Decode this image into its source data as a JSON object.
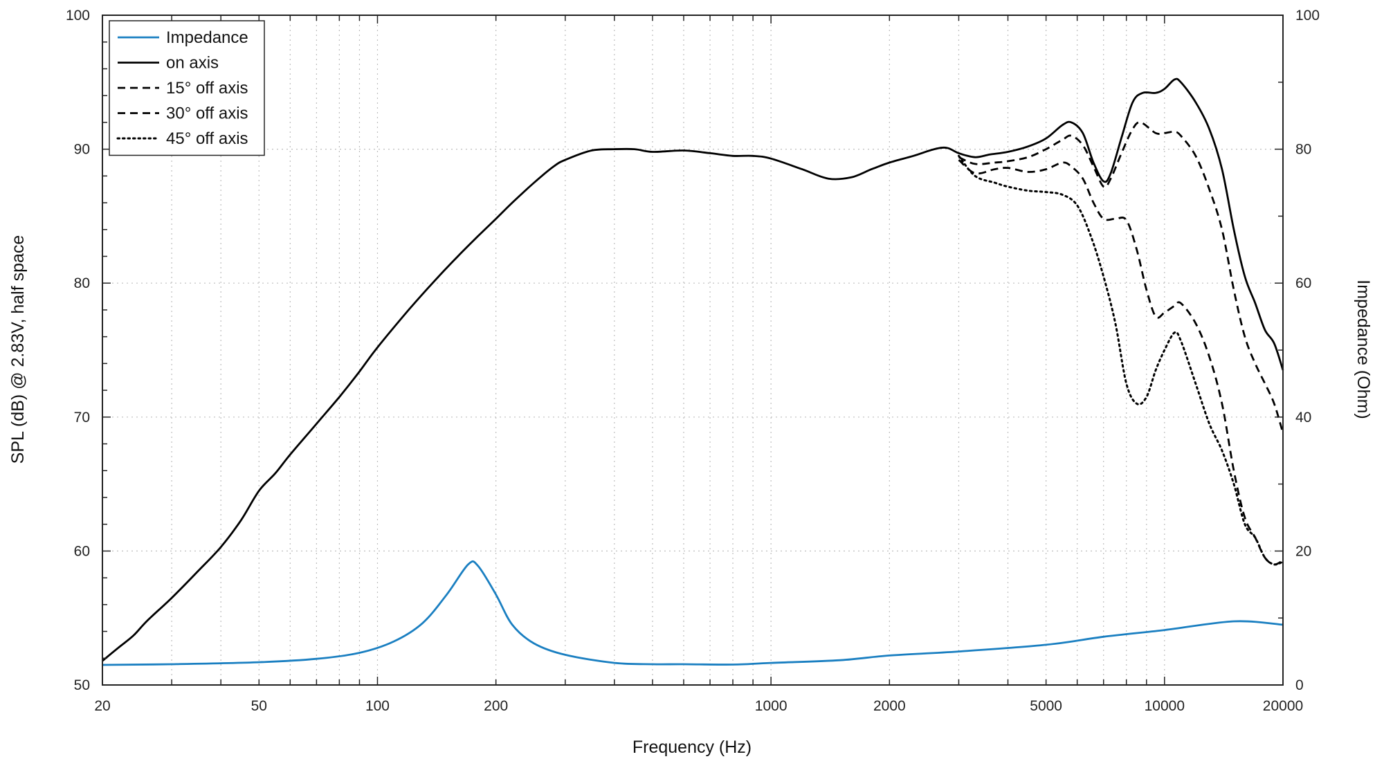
{
  "chart_data": {
    "type": "line",
    "xlabel": "Frequency (Hz)",
    "ylabel": "SPL (dB) @ 2.83V, half space",
    "y2label": "Impedance (Ohm)",
    "x_scale": "log",
    "xlim": [
      20,
      20000
    ],
    "ylim": [
      50,
      100
    ],
    "y2lim": [
      0,
      100
    ],
    "grid": true,
    "legend_position": "top-left",
    "x_tick_labels": [
      "20",
      "50",
      "100",
      "200",
      "1000",
      "2000",
      "5000",
      "10000",
      "20000"
    ],
    "y_tick_labels": [
      "50",
      "60",
      "70",
      "80",
      "90",
      "100"
    ],
    "y2_tick_labels": [
      "0",
      "20",
      "40",
      "60",
      "80",
      "100"
    ],
    "series": [
      {
        "name": "Impedance",
        "axis": "right",
        "color": "#1a7fc1",
        "style": "solid",
        "points": [
          [
            20,
            3
          ],
          [
            30,
            3.1
          ],
          [
            50,
            3.4
          ],
          [
            70,
            3.9
          ],
          [
            90,
            4.8
          ],
          [
            110,
            6.5
          ],
          [
            130,
            9.2
          ],
          [
            150,
            13.5
          ],
          [
            170,
            18
          ],
          [
            180,
            17.8
          ],
          [
            200,
            13.5
          ],
          [
            220,
            9
          ],
          [
            250,
            6.2
          ],
          [
            300,
            4.5
          ],
          [
            400,
            3.3
          ],
          [
            500,
            3.1
          ],
          [
            600,
            3.1
          ],
          [
            800,
            3.05
          ],
          [
            1000,
            3.3
          ],
          [
            1500,
            3.7
          ],
          [
            2000,
            4.4
          ],
          [
            3000,
            5
          ],
          [
            5000,
            6
          ],
          [
            7000,
            7.2
          ],
          [
            10000,
            8.2
          ],
          [
            15000,
            9.5
          ],
          [
            20000,
            9
          ]
        ]
      },
      {
        "name": "on axis",
        "axis": "left",
        "color": "#000000",
        "style": "solid",
        "points": [
          [
            20,
            51.8
          ],
          [
            22,
            52.8
          ],
          [
            24,
            53.7
          ],
          [
            26,
            54.8
          ],
          [
            30,
            56.5
          ],
          [
            35,
            58.5
          ],
          [
            40,
            60.3
          ],
          [
            45,
            62.3
          ],
          [
            50,
            64.5
          ],
          [
            55,
            65.8
          ],
          [
            60,
            67.2
          ],
          [
            70,
            69.5
          ],
          [
            80,
            71.5
          ],
          [
            90,
            73.4
          ],
          [
            100,
            75.2
          ],
          [
            120,
            78
          ],
          [
            140,
            80.2
          ],
          [
            160,
            82
          ],
          [
            180,
            83.5
          ],
          [
            200,
            84.8
          ],
          [
            220,
            86
          ],
          [
            250,
            87.5
          ],
          [
            280,
            88.7
          ],
          [
            300,
            89.2
          ],
          [
            350,
            89.9
          ],
          [
            400,
            90
          ],
          [
            450,
            90
          ],
          [
            500,
            89.8
          ],
          [
            600,
            89.9
          ],
          [
            700,
            89.7
          ],
          [
            800,
            89.5
          ],
          [
            900,
            89.5
          ],
          [
            1000,
            89.3
          ],
          [
            1200,
            88.5
          ],
          [
            1400,
            87.8
          ],
          [
            1600,
            87.9
          ],
          [
            1800,
            88.5
          ],
          [
            2000,
            89
          ],
          [
            2300,
            89.5
          ],
          [
            2600,
            90
          ],
          [
            2800,
            90.1
          ],
          [
            3000,
            89.7
          ],
          [
            3300,
            89.4
          ],
          [
            3600,
            89.6
          ],
          [
            4000,
            89.8
          ],
          [
            4500,
            90.2
          ],
          [
            5000,
            90.8
          ],
          [
            5500,
            91.8
          ],
          [
            5800,
            92
          ],
          [
            6200,
            91.2
          ],
          [
            6600,
            89
          ],
          [
            7000,
            87.6
          ],
          [
            7300,
            88.2
          ],
          [
            7800,
            91
          ],
          [
            8300,
            93.5
          ],
          [
            8800,
            94.2
          ],
          [
            9500,
            94.2
          ],
          [
            10000,
            94.5
          ],
          [
            10600,
            95.2
          ],
          [
            11000,
            95
          ],
          [
            12000,
            93.5
          ],
          [
            13000,
            91.5
          ],
          [
            14000,
            88.5
          ],
          [
            15000,
            84
          ],
          [
            16000,
            80.5
          ],
          [
            17000,
            78.5
          ],
          [
            18000,
            76.5
          ],
          [
            19000,
            75.5
          ],
          [
            20000,
            73.5
          ]
        ]
      },
      {
        "name": "15° off axis",
        "axis": "left",
        "color": "#000000",
        "style": "dashed",
        "points": [
          [
            3000,
            89.4
          ],
          [
            3300,
            88.9
          ],
          [
            3700,
            89
          ],
          [
            4000,
            89.1
          ],
          [
            4500,
            89.4
          ],
          [
            5000,
            90
          ],
          [
            5500,
            90.7
          ],
          [
            5800,
            91
          ],
          [
            6200,
            90.3
          ],
          [
            6600,
            88.7
          ],
          [
            7000,
            87.2
          ],
          [
            7300,
            87.8
          ],
          [
            7800,
            89.8
          ],
          [
            8300,
            91.5
          ],
          [
            8700,
            92
          ],
          [
            9500,
            91.2
          ],
          [
            10000,
            91.2
          ],
          [
            10600,
            91.3
          ],
          [
            11000,
            91
          ],
          [
            12000,
            89.5
          ],
          [
            13000,
            87
          ],
          [
            14000,
            84
          ],
          [
            15000,
            79.5
          ],
          [
            16000,
            76
          ],
          [
            17000,
            74
          ],
          [
            18000,
            72.5
          ],
          [
            19000,
            71
          ],
          [
            20000,
            68.8
          ]
        ]
      },
      {
        "name": "30° off axis",
        "axis": "left",
        "color": "#000000",
        "style": "dashed",
        "points": [
          [
            3000,
            89.2
          ],
          [
            3300,
            88.2
          ],
          [
            3700,
            88.5
          ],
          [
            4000,
            88.6
          ],
          [
            4500,
            88.3
          ],
          [
            5000,
            88.5
          ],
          [
            5500,
            89
          ],
          [
            5800,
            88.7
          ],
          [
            6200,
            87.8
          ],
          [
            6600,
            86
          ],
          [
            7000,
            84.8
          ],
          [
            7500,
            84.8
          ],
          [
            8000,
            84.7
          ],
          [
            8500,
            82.5
          ],
          [
            9000,
            79.5
          ],
          [
            9500,
            77.5
          ],
          [
            10000,
            77.8
          ],
          [
            10600,
            78.3
          ],
          [
            11000,
            78.5
          ],
          [
            12000,
            77
          ],
          [
            13000,
            74.5
          ],
          [
            14000,
            71
          ],
          [
            15000,
            66
          ],
          [
            16000,
            62.5
          ],
          [
            17000,
            61
          ],
          [
            18000,
            59.5
          ],
          [
            19000,
            59
          ],
          [
            20000,
            59.3
          ]
        ]
      },
      {
        "name": "45° off axis",
        "axis": "left",
        "color": "#000000",
        "style": "dotted",
        "points": [
          [
            3000,
            89.5
          ],
          [
            3300,
            88
          ],
          [
            3700,
            87.5
          ],
          [
            4000,
            87.2
          ],
          [
            4500,
            86.9
          ],
          [
            5000,
            86.8
          ],
          [
            5500,
            86.6
          ],
          [
            6000,
            85.8
          ],
          [
            6500,
            83.5
          ],
          [
            7000,
            80.5
          ],
          [
            7500,
            77
          ],
          [
            8000,
            72.5
          ],
          [
            8500,
            71
          ],
          [
            9000,
            71.5
          ],
          [
            9500,
            73.5
          ],
          [
            10000,
            75
          ],
          [
            10600,
            76.3
          ],
          [
            11000,
            75.7
          ],
          [
            12000,
            72.5
          ],
          [
            13000,
            69.5
          ],
          [
            14000,
            67.5
          ],
          [
            15000,
            65
          ],
          [
            16000,
            62
          ],
          [
            17000,
            61
          ],
          [
            18000,
            59.5
          ],
          [
            19000,
            59
          ],
          [
            20000,
            59.2
          ]
        ]
      }
    ]
  }
}
